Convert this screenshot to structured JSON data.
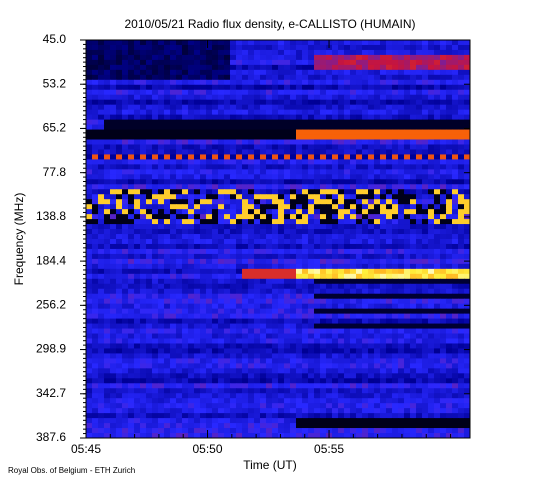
{
  "chart_data": {
    "type": "spectrogram",
    "title": "2010/05/21  Radio flux density, e-CALLISTO (HUMAIN)",
    "xlabel": "Time (UT)",
    "ylabel": "Frequency (MHz)",
    "footer": "Royal Obs. of Belgium - ETH Zurich",
    "xlim": [
      345,
      360.8
    ],
    "xticks": [
      {
        "value": 345,
        "label": "05:45"
      },
      {
        "value": 350,
        "label": "05:50"
      },
      {
        "value": 355,
        "label": "05:55"
      }
    ],
    "ylim": [
      45.0,
      387.6
    ],
    "yticks": [
      {
        "value": 45.0,
        "label": "45.0"
      },
      {
        "value": 53.2,
        "label": "53.2"
      },
      {
        "value": 65.2,
        "label": "65.2"
      },
      {
        "value": 77.8,
        "label": "77.8"
      },
      {
        "value": 138.8,
        "label": "138.8"
      },
      {
        "value": 184.4,
        "label": "184.4"
      },
      {
        "value": 256.2,
        "label": "256.2"
      },
      {
        "value": 298.9,
        "label": "298.9"
      },
      {
        "value": 342.7,
        "label": "342.7"
      },
      {
        "value": 387.6,
        "label": "387.6"
      }
    ]
  }
}
